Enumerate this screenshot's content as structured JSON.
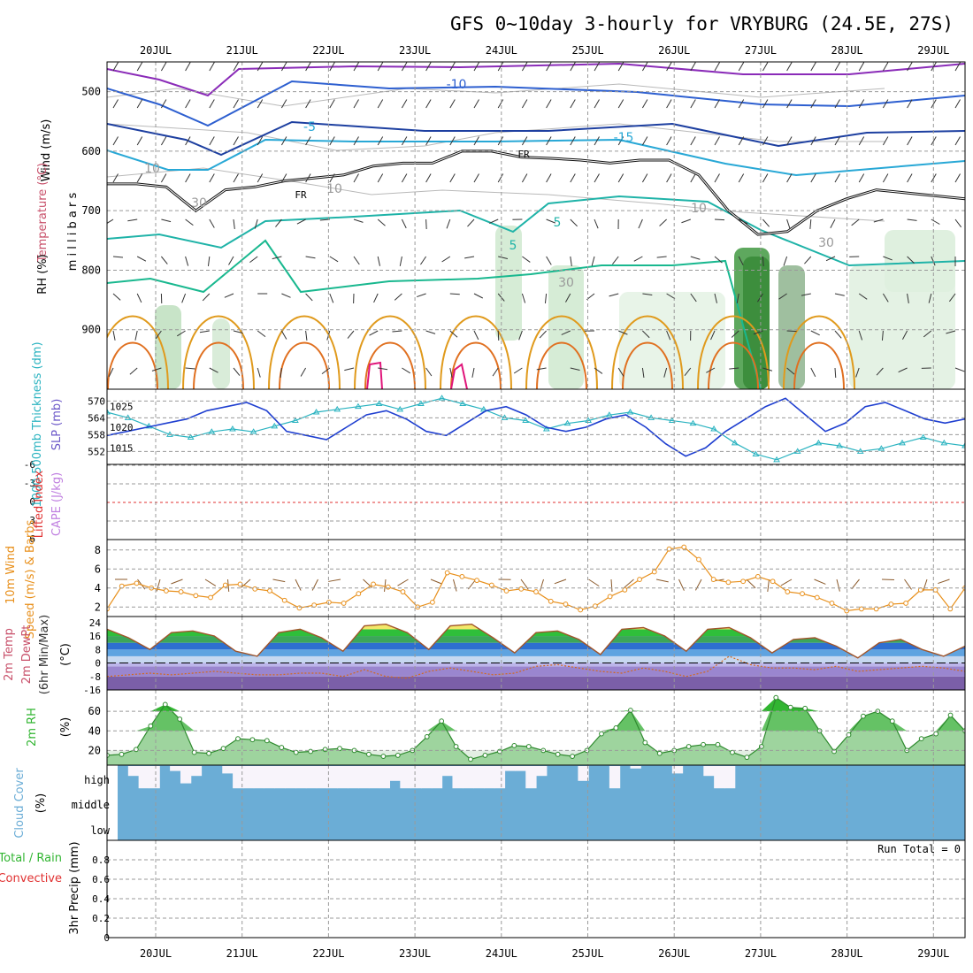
{
  "title": "GFS 0~10day 3-hourly for VRYBURG (24.5E, 27S)",
  "days": [
    "20JUL",
    "21JUL",
    "22JUL",
    "23JUL",
    "24JUL",
    "25JUL",
    "26JUL",
    "27JUL",
    "28JUL",
    "29JUL"
  ],
  "colors": {
    "grid": "#9a9a9a",
    "dew": "#d2691e",
    "speed": "#e8901c",
    "thick": "#2ab3c0",
    "slp": "#1f3fd0",
    "rhfill": "#31b531",
    "cloud": "#6badd6",
    "barb": "#8b5a2b",
    "li": "#e03030",
    "cape": "#c080e0"
  },
  "chart_data": [
    {
      "type": "line",
      "panel": "upper-air",
      "ylabel": "m i l l i b a r s",
      "y_ticks": [
        500,
        600,
        700,
        800,
        900
      ],
      "ylim": [
        1000,
        450
      ],
      "side_labels": {
        "wind": "Wind (m/s)",
        "temperature": "Temperature (°C)",
        "rh": "RH (%)"
      },
      "contour_labels": {
        "freezing": "FR",
        "minus10": "-10",
        "minus5": "-5",
        "minus15": "-15",
        "plus5": "5",
        "rh10": "10",
        "rh30": "30"
      },
      "freezing_level_mb": [
        655,
        655,
        660,
        700,
        665,
        660,
        650,
        645,
        640,
        625,
        620,
        620,
        600,
        600,
        610,
        612,
        615,
        620,
        615,
        615,
        640,
        700,
        740,
        735,
        700,
        680,
        665,
        670,
        675,
        680
      ]
    },
    {
      "type": "line",
      "panel": "thickness-slp",
      "labels": {
        "thickness": "1000-500mb Thickness (dm)",
        "slp": "SLP (mb)"
      },
      "thickness_ticks": [
        "570",
        "564",
        "558",
        "552"
      ],
      "slp_ticks": [
        "1025",
        "1020",
        "1015"
      ],
      "thickness_dm": [
        566,
        564,
        561,
        558,
        557,
        559,
        560,
        559,
        561,
        563,
        566,
        567,
        568,
        569,
        567,
        569,
        571,
        569,
        567,
        564,
        563,
        560,
        562,
        563,
        565,
        566,
        564,
        563,
        562,
        560,
        555,
        551,
        549,
        552,
        555,
        554,
        552,
        553,
        555,
        557,
        555,
        554
      ],
      "slp_mb": [
        1018,
        1019,
        1020,
        1021,
        1022,
        1024,
        1025,
        1026,
        1024,
        1019,
        1018,
        1017,
        1020,
        1023,
        1024,
        1022,
        1019,
        1018,
        1021,
        1024,
        1025,
        1023,
        1020,
        1019,
        1020,
        1022,
        1023,
        1020,
        1016,
        1013,
        1015,
        1019,
        1022,
        1025,
        1027,
        1023,
        1019,
        1021,
        1025,
        1026,
        1024,
        1022,
        1021,
        1022
      ]
    },
    {
      "type": "line",
      "panel": "stability",
      "labels": {
        "li": "Lifted Index",
        "cape": "CAPE (J/kg)"
      },
      "y_ticks": [
        "-6",
        "-3",
        "0",
        "3",
        "6"
      ],
      "li_value": 0
    },
    {
      "type": "line",
      "panel": "wind10m",
      "labels": {
        "title": "10m Wind",
        "speed": "Speed (m/s) & Barbs"
      },
      "y_ticks": [
        "8",
        "6",
        "4",
        "2"
      ],
      "ylim": [
        1,
        9
      ],
      "speed_ms": [
        1.8,
        4.2,
        4.5,
        4.0,
        3.7,
        3.6,
        3.2,
        3.0,
        4.3,
        4.4,
        3.9,
        3.7,
        2.7,
        1.9,
        2.2,
        2.5,
        2.4,
        3.4,
        4.4,
        4.1,
        3.6,
        2.0,
        2.5,
        5.6,
        5.2,
        4.8,
        4.3,
        3.7,
        3.9,
        3.6,
        2.6,
        2.3,
        1.7,
        2.1,
        3.1,
        3.8,
        4.9,
        5.7,
        8.1,
        8.3,
        7.0,
        4.9,
        4.6,
        4.7,
        5.2,
        4.7,
        3.6,
        3.4,
        3.0,
        2.4,
        1.6,
        1.8,
        1.8,
        2.3,
        2.4,
        3.8,
        3.8,
        1.8,
        4.0
      ]
    },
    {
      "type": "area",
      "panel": "temp2m",
      "labels": {
        "temp": "2m Temp",
        "dewpt": "2m DewPt",
        "minmax": "(6hr Min/Max)",
        "unit": "(°C)"
      },
      "y_ticks": [
        "24",
        "16",
        "8",
        "0",
        "-8",
        "-16"
      ],
      "ylim": [
        -16,
        26
      ],
      "temp_c": [
        20,
        15,
        8,
        18,
        19,
        16,
        7,
        4,
        18,
        20,
        15,
        7,
        22,
        23,
        18,
        8,
        22,
        23,
        15,
        6,
        18,
        19,
        14,
        5,
        20,
        21,
        16,
        7,
        20,
        21,
        15,
        6,
        14,
        15,
        10,
        3,
        12,
        14,
        8,
        4,
        10
      ],
      "dewpt_c": [
        -8,
        -7,
        -6,
        -7,
        -6,
        -5,
        -6,
        -7,
        -7,
        -6,
        -6,
        -8,
        -4,
        -8,
        -9,
        -5,
        -3,
        -5,
        -7,
        -6,
        -2,
        -1,
        -3,
        -5,
        -6,
        -3,
        -5,
        -8,
        -5,
        4,
        -1,
        -3,
        -3,
        -4,
        -2,
        -5,
        -4,
        -3,
        -2,
        -3,
        -5
      ]
    },
    {
      "type": "area",
      "panel": "rh2m",
      "labels": {
        "title": "2m RH",
        "unit": "(%)"
      },
      "y_ticks": [
        "60",
        "40",
        "20"
      ],
      "ylim": [
        5,
        80
      ],
      "rh_pct": [
        15,
        16,
        21,
        45,
        67,
        52,
        18,
        17,
        22,
        32,
        31,
        30,
        23,
        18,
        19,
        21,
        22,
        20,
        16,
        14,
        15,
        20,
        34,
        50,
        24,
        11,
        15,
        19,
        25,
        24,
        20,
        16,
        14,
        20,
        37,
        43,
        61,
        28,
        17,
        20,
        24,
        26,
        26,
        18,
        13,
        24,
        74,
        64,
        63,
        40,
        19,
        36,
        55,
        60,
        50,
        20,
        32,
        37,
        56,
        40
      ]
    },
    {
      "type": "heatmap",
      "panel": "cloud",
      "labels": {
        "title": "Cloud Cover",
        "unit": "(%)",
        "high": "high",
        "middle": "middle",
        "low": "low"
      },
      "high_pct": [
        100,
        60,
        10,
        10,
        100,
        80,
        30,
        60,
        100,
        100,
        70,
        10,
        10,
        10,
        10,
        10,
        10,
        10,
        10,
        10,
        10,
        10,
        10,
        10,
        10,
        10,
        40,
        10,
        10,
        10,
        10,
        60,
        10,
        10,
        10,
        10,
        10,
        80,
        80,
        10,
        60,
        100,
        100,
        100,
        40,
        100,
        100,
        10,
        100,
        90,
        100,
        100,
        100,
        70,
        100,
        100,
        60,
        10,
        10,
        100,
        100,
        100,
        100,
        100,
        100,
        100,
        100,
        100,
        100,
        100,
        100,
        100,
        100,
        100,
        100,
        100,
        100,
        100,
        100,
        100,
        100
      ]
    },
    {
      "type": "bar",
      "panel": "precip",
      "labels": {
        "title": "3hr Precip (mm)",
        "total": "Total / Rain",
        "convective": "Convective",
        "run_total": "Run Total = 0"
      },
      "y_ticks": [
        "0.8",
        "0.6",
        "0.4",
        "0.2",
        "0"
      ],
      "ylim": [
        0,
        1
      ],
      "values_mm": []
    }
  ]
}
